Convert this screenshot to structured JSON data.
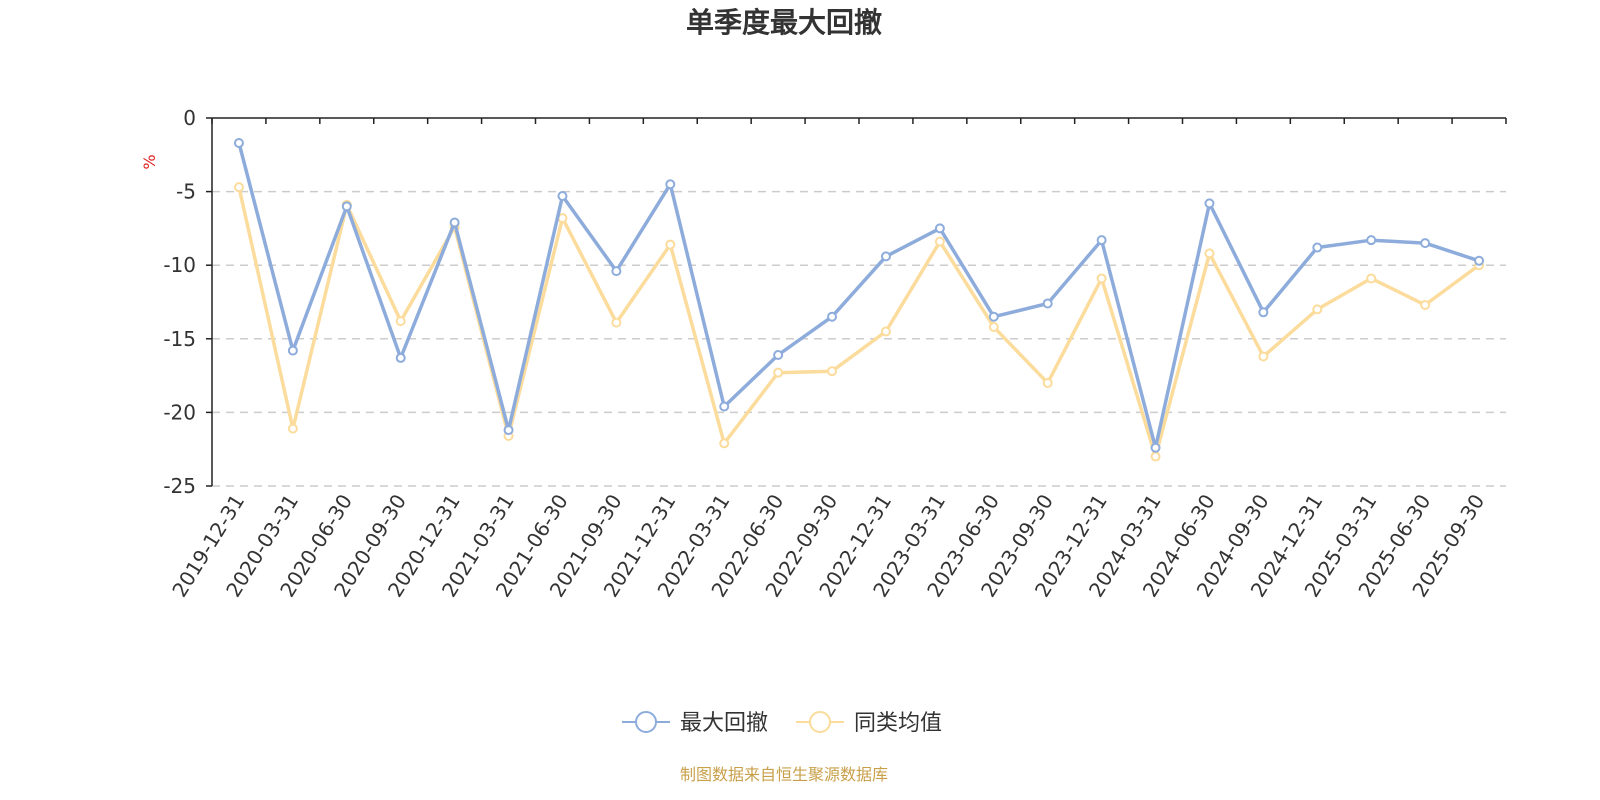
{
  "chart_data": {
    "type": "line",
    "title": "单季度最大回撤",
    "ylabel": "%",
    "ylim": [
      -25,
      0
    ],
    "yticks": [
      0,
      -5,
      -10,
      -15,
      -20,
      -25
    ],
    "grid": true,
    "legend_position": "bottom",
    "categories": [
      "2019-12-31",
      "2020-03-31",
      "2020-06-30",
      "2020-09-30",
      "2020-12-31",
      "2021-03-31",
      "2021-06-30",
      "2021-09-30",
      "2021-12-31",
      "2022-03-31",
      "2022-06-30",
      "2022-09-30",
      "2022-12-31",
      "2023-03-31",
      "2023-06-30",
      "2023-09-30",
      "2023-12-31",
      "2024-03-31",
      "2024-06-30",
      "2024-09-30",
      "2024-12-31",
      "2025-03-31",
      "2025-06-30",
      "2025-09-30"
    ],
    "series": [
      {
        "name": "最大回撤",
        "color": "#8eacdb",
        "values": [
          -1.7,
          -15.8,
          -6.0,
          -16.3,
          -7.1,
          -21.2,
          -5.3,
          -10.4,
          -4.5,
          -19.6,
          -16.1,
          -13.5,
          -9.4,
          -7.5,
          -13.5,
          -12.6,
          -8.3,
          -22.4,
          -5.8,
          -13.2,
          -8.8,
          -8.3,
          -8.5,
          -9.7
        ]
      },
      {
        "name": "同类均值",
        "color": "#fbdc9c",
        "values": [
          -4.7,
          -21.1,
          -5.9,
          -13.8,
          -7.4,
          -21.6,
          -6.8,
          -13.9,
          -8.6,
          -22.1,
          -17.3,
          -17.2,
          -14.5,
          -8.4,
          -14.2,
          -18.0,
          -10.9,
          -23.0,
          -9.2,
          -16.2,
          -13.0,
          -10.9,
          -12.7,
          -10.0
        ]
      }
    ],
    "source_note": "制图数据来自恒生聚源数据库",
    "unit_color": "#e02020",
    "source_color": "#c8a04a",
    "grid_color": "#cccccc",
    "axis_color": "#222222"
  }
}
